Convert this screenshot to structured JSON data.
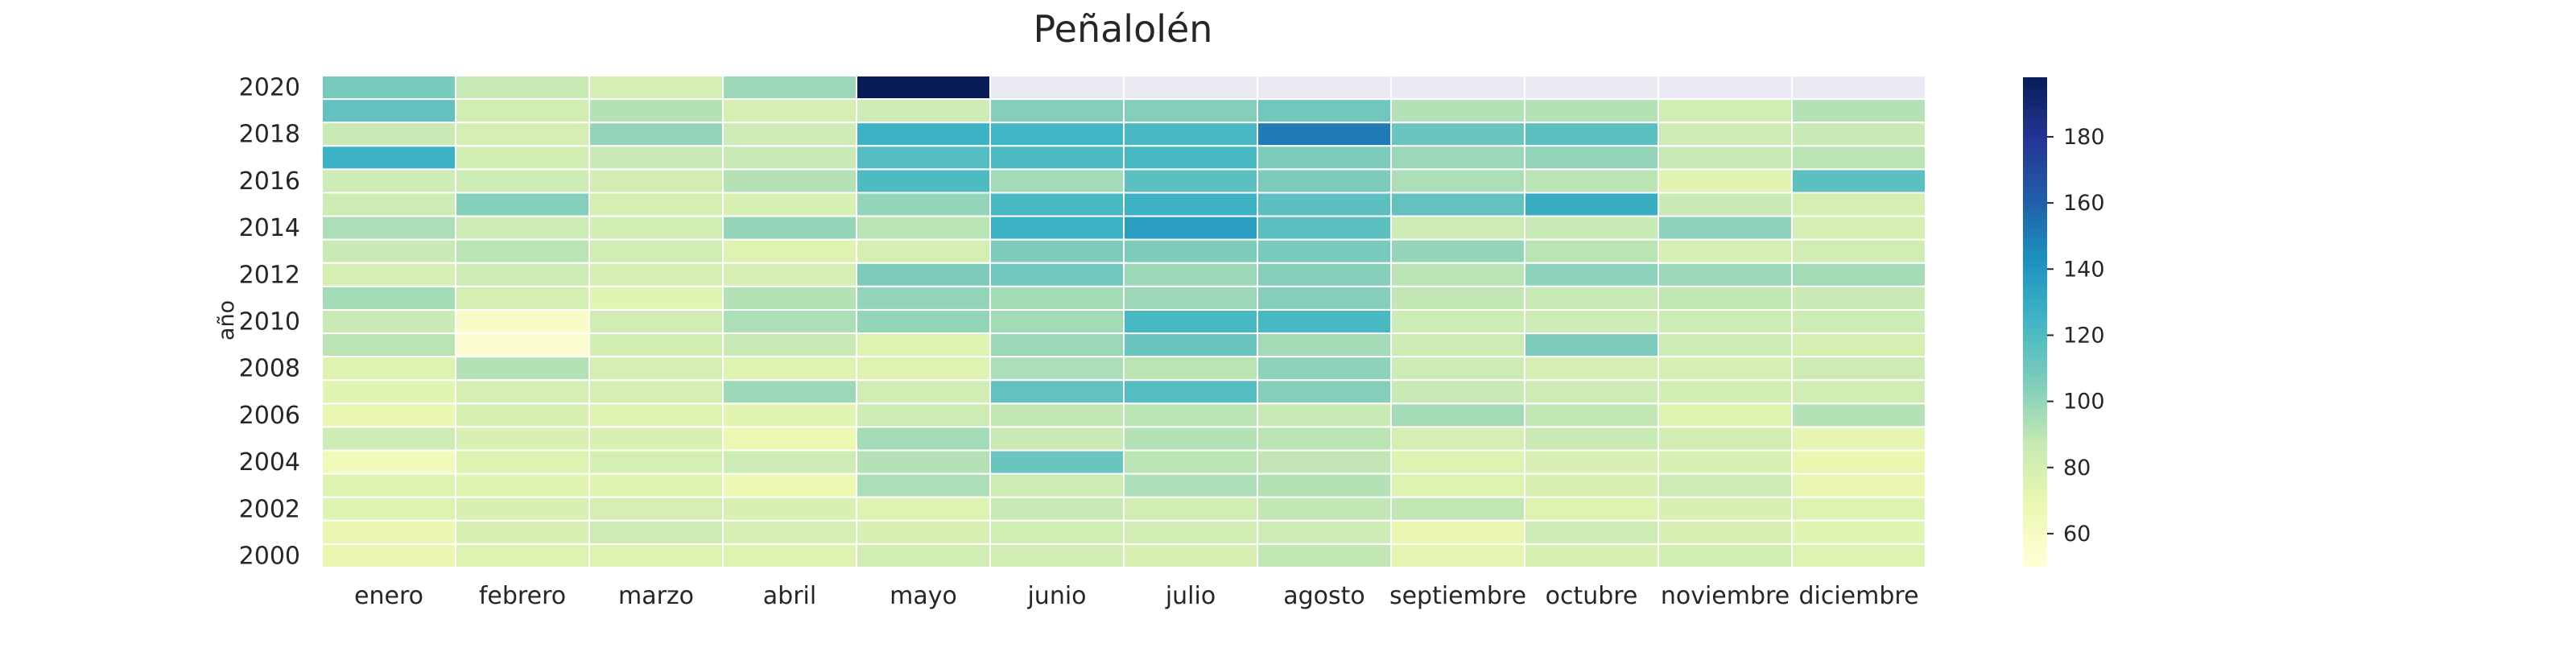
{
  "chart_data": {
    "type": "heatmap",
    "title": "Peñalolén",
    "xlabel": "",
    "ylabel": "año",
    "x_categories": [
      "enero",
      "febrero",
      "marzo",
      "abril",
      "mayo",
      "junio",
      "julio",
      "agosto",
      "septiembre",
      "octubre",
      "noviembre",
      "diciembre"
    ],
    "y_categories": [
      "2020",
      "2019",
      "2018",
      "2017",
      "2016",
      "2015",
      "2014",
      "2013",
      "2012",
      "2011",
      "2010",
      "2009",
      "2008",
      "2007",
      "2006",
      "2005",
      "2004",
      "2003",
      "2002",
      "2001",
      "2000"
    ],
    "y_tick_labels": [
      "2020",
      "",
      "2018",
      "",
      "2016",
      "",
      "2014",
      "",
      "2012",
      "",
      "2010",
      "",
      "2008",
      "",
      "2006",
      "",
      "2004",
      "",
      "2002",
      "",
      "2000"
    ],
    "values": [
      [
        108,
        87,
        80,
        98,
        198,
        null,
        null,
        null,
        null,
        null,
        null,
        null
      ],
      [
        114,
        82,
        92,
        80,
        84,
        104,
        104,
        110,
        92,
        92,
        82,
        92
      ],
      [
        86,
        80,
        100,
        84,
        126,
        124,
        122,
        150,
        112,
        116,
        84,
        86
      ],
      [
        126,
        82,
        86,
        86,
        118,
        120,
        122,
        106,
        98,
        100,
        86,
        90
      ],
      [
        84,
        84,
        82,
        92,
        120,
        96,
        116,
        106,
        94,
        90,
        74,
        116
      ],
      [
        84,
        104,
        80,
        78,
        100,
        122,
        126,
        116,
        114,
        128,
        86,
        80
      ],
      [
        94,
        84,
        82,
        100,
        90,
        126,
        136,
        116,
        84,
        86,
        102,
        80
      ],
      [
        86,
        90,
        82,
        76,
        80,
        106,
        106,
        108,
        100,
        90,
        80,
        82
      ],
      [
        80,
        84,
        80,
        80,
        106,
        110,
        98,
        104,
        90,
        102,
        98,
        96
      ],
      [
        96,
        80,
        74,
        92,
        100,
        96,
        98,
        104,
        88,
        86,
        88,
        86
      ],
      [
        86,
        58,
        82,
        94,
        100,
        96,
        122,
        122,
        84,
        84,
        84,
        84
      ],
      [
        90,
        54,
        82,
        86,
        76,
        98,
        112,
        96,
        84,
        106,
        84,
        80
      ],
      [
        76,
        92,
        80,
        76,
        76,
        94,
        90,
        102,
        84,
        80,
        80,
        84
      ],
      [
        74,
        80,
        80,
        98,
        82,
        114,
        118,
        104,
        86,
        84,
        82,
        82
      ],
      [
        70,
        78,
        76,
        74,
        84,
        88,
        90,
        86,
        96,
        88,
        76,
        92
      ],
      [
        84,
        78,
        78,
        68,
        96,
        86,
        92,
        90,
        80,
        86,
        82,
        72
      ],
      [
        64,
        76,
        80,
        84,
        92,
        112,
        90,
        88,
        76,
        78,
        78,
        70
      ],
      [
        76,
        74,
        74,
        68,
        94,
        84,
        94,
        92,
        76,
        78,
        84,
        70
      ],
      [
        76,
        78,
        80,
        78,
        76,
        86,
        82,
        88,
        88,
        76,
        78,
        76
      ],
      [
        70,
        78,
        84,
        80,
        78,
        82,
        82,
        84,
        70,
        84,
        78,
        74
      ],
      [
        70,
        76,
        76,
        76,
        82,
        82,
        78,
        88,
        72,
        78,
        82,
        76
      ]
    ],
    "missing_color": "#eaeaf2",
    "colorscale": "YlGnBu",
    "colorbar": {
      "min": 50,
      "max": 198,
      "ticks": [
        60,
        80,
        100,
        120,
        140,
        160,
        180
      ]
    },
    "grid": false
  }
}
